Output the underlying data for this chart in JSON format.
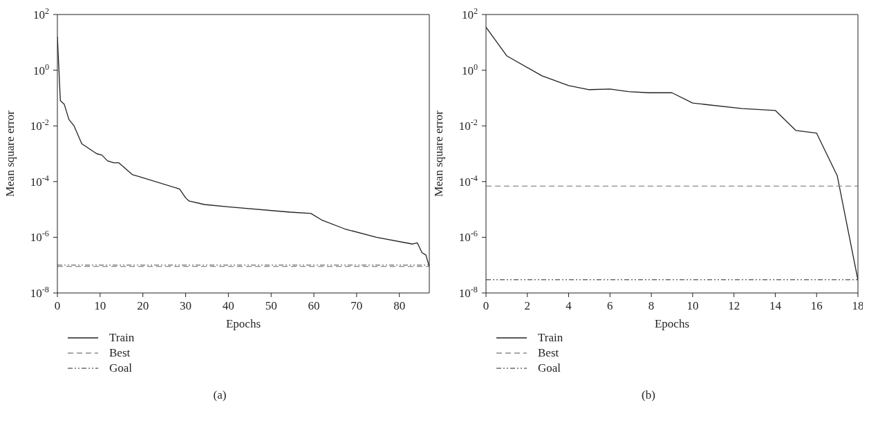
{
  "chart_data": [
    {
      "type": "line",
      "xlabel": "Epochs",
      "ylabel": "Mean square error",
      "log": "y",
      "xlim": [
        0,
        87
      ],
      "xticks": [
        0,
        10,
        20,
        30,
        40,
        50,
        60,
        70,
        80
      ],
      "ylim": [
        1e-08,
        100
      ],
      "yticks": [
        {
          "value": 1e-08,
          "label": "10$^{-8}$"
        },
        {
          "value": 1e-06,
          "label": "10$^{-6}$"
        },
        {
          "value": 0.0001,
          "label": "10$^{-4}$"
        },
        {
          "value": 0.01,
          "label": "10$^{-2}$"
        },
        {
          "value": 1,
          "label": "10$^{0}$"
        },
        {
          "value": 100,
          "label": "10$^{2}$"
        }
      ],
      "legend": "bottom left",
      "marker": "none",
      "annotations": [
        "(a)"
      ],
      "series": [
        {
          "name": "Train",
          "color": "#231f20",
          "line_style": "solid",
          "x": [
            0,
            0.7,
            1.6,
            2.7,
            3.9,
            5.7,
            9.2,
            10.4,
            11.7,
            13.2,
            14.4,
            17.5,
            28.6,
            30,
            30.8,
            34.4,
            40,
            54.4,
            59.3,
            61.8,
            67.2,
            74.6,
            83.1,
            84.2,
            85.3,
            86.2,
            87
          ],
          "values": [
            16,
            0.08,
            0.06,
            0.017,
            0.01,
            0.0023,
            0.001,
            0.0009,
            0.00056,
            0.00047,
            0.00047,
            0.00018,
            5.4e-05,
            2.6e-05,
            2e-05,
            1.5e-05,
            1.23e-05,
            8e-06,
            7.2e-06,
            4.2e-06,
            2e-06,
            1e-06,
            5.7e-07,
            6.3e-07,
            2.8e-07,
            2.3e-07,
            8.7e-08
          ]
        },
        {
          "name": "Best",
          "color": "#8a8a8a",
          "line_style": "dashed",
          "x": [
            0,
            87
          ],
          "values": [
            9e-08,
            9e-08
          ]
        },
        {
          "name": "Goal",
          "color": "#6b6b6b",
          "line_style": "dotted",
          "x": [
            0,
            87
          ],
          "values": [
            1e-07,
            1e-07
          ]
        }
      ]
    },
    {
      "type": "line",
      "xlabel": "Epochs",
      "ylabel": "Mean square error",
      "log": "y",
      "xlim": [
        0,
        18
      ],
      "xticks": [
        0,
        2,
        4,
        6,
        8,
        10,
        12,
        14,
        16,
        18
      ],
      "ylim": [
        1e-08,
        100
      ],
      "yticks": [
        {
          "value": 1e-08,
          "label": "10$^{-8}$"
        },
        {
          "value": 1e-06,
          "label": "10$^{-6}$"
        },
        {
          "value": 0.0001,
          "label": "10$^{-4}$"
        },
        {
          "value": 0.01,
          "label": "10$^{-2}$"
        },
        {
          "value": 1,
          "label": "10$^{0}$"
        },
        {
          "value": 100,
          "label": "10$^{2}$"
        }
      ],
      "legend": "bottom left",
      "marker": "none",
      "annotations": [
        "(b)"
      ],
      "series": [
        {
          "name": "Train",
          "color": "#231f20",
          "line_style": "solid",
          "x": [
            0,
            1,
            2.7,
            4,
            5,
            6,
            6.9,
            7.9,
            9,
            10,
            12.4,
            14,
            15,
            16,
            17,
            18
          ],
          "values": [
            35,
            3.3,
            0.63,
            0.28,
            0.2,
            0.21,
            0.17,
            0.155,
            0.155,
            0.066,
            0.042,
            0.036,
            0.0068,
            0.0055,
            0.00016,
            2.9e-08
          ]
        },
        {
          "name": "Best",
          "color": "#8a8a8a",
          "line_style": "dashed",
          "x": [
            0,
            18
          ],
          "values": [
            6.9e-05,
            6.9e-05
          ]
        },
        {
          "name": "Goal",
          "color": "#6b6b6b",
          "line_style": "dotted",
          "x": [
            0,
            18
          ],
          "values": [
            3e-08,
            3e-08
          ]
        }
      ]
    }
  ]
}
